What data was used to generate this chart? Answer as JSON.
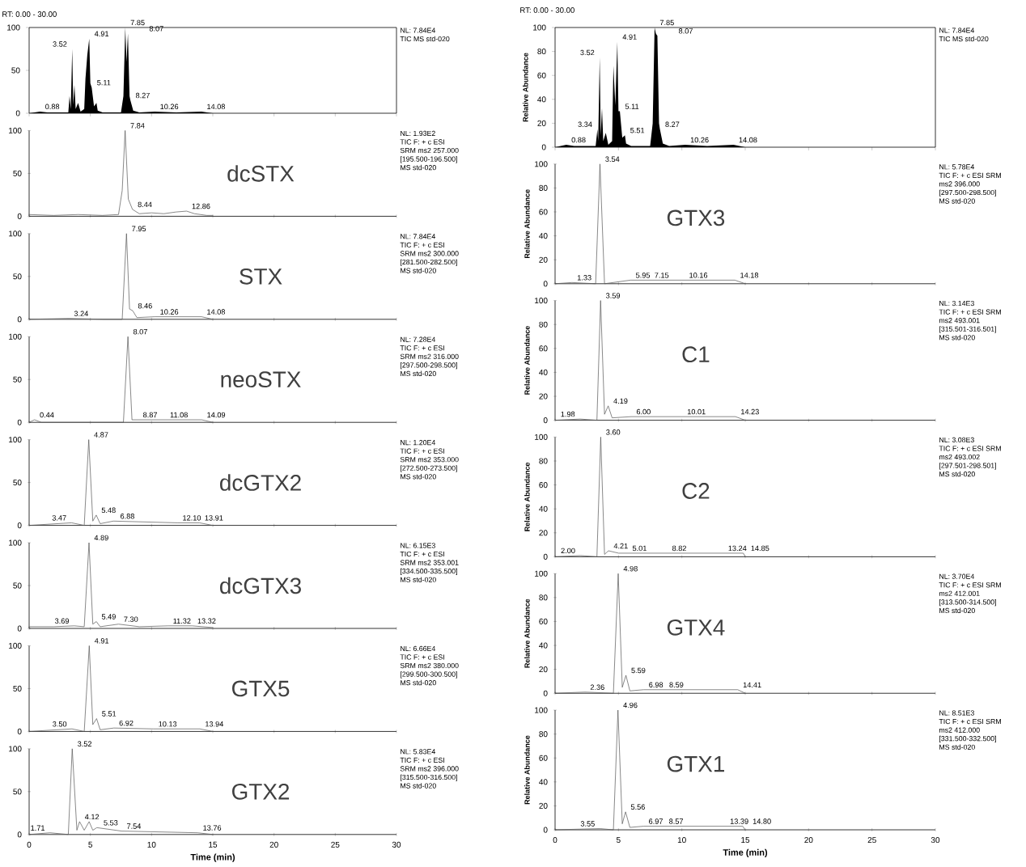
{
  "chart_data": [
    {
      "type": "area",
      "subtitle": "RT: 0.00 - 30.00",
      "color": "#000000",
      "xlim": [
        0,
        30
      ],
      "ylim": [
        0,
        100
      ],
      "xticks": [
        0,
        5,
        10,
        15,
        20,
        25,
        30
      ],
      "yticks": [
        0,
        50,
        100
      ],
      "tick_labels": "y",
      "x": [
        0,
        0.88,
        1.5,
        3.2,
        3.3,
        3.4,
        3.52,
        3.6,
        3.7,
        3.8,
        4.0,
        4.2,
        4.5,
        4.6,
        4.75,
        4.91,
        5.0,
        5.11,
        5.3,
        5.5,
        5.6,
        6.0,
        7.5,
        7.7,
        7.85,
        7.95,
        8.07,
        8.2,
        8.27,
        8.5,
        9.0,
        10.26,
        12.0,
        14.08,
        15.0
      ],
      "values": [
        0,
        2,
        1,
        1,
        20,
        5,
        75,
        10,
        33,
        5,
        12,
        2,
        5,
        40,
        68,
        87,
        35,
        30,
        8,
        12,
        3,
        1,
        1,
        20,
        100,
        60,
        93,
        20,
        15,
        3,
        1,
        2,
        1,
        2,
        0
      ],
      "annotations": [
        {
          "text": "0.88",
          "x": 0.88,
          "y": 2
        },
        {
          "text": "3.52",
          "x": 3.52,
          "y": 75
        },
        {
          "text": "4.91",
          "x": 4.91,
          "y": 87
        },
        {
          "text": "5.11",
          "x": 5.11,
          "y": 30
        },
        {
          "text": "7.85",
          "x": 7.85,
          "y": 100
        },
        {
          "text": "8.07",
          "x": 8.07,
          "y": 93
        },
        {
          "text": "8.27",
          "x": 8.27,
          "y": 15
        },
        {
          "text": "10.26",
          "x": 10.26,
          "y": 2
        },
        {
          "text": "14.08",
          "x": 14.08,
          "y": 2
        },
        "NL: 7.84E4",
        "TIC  MS std-020"
      ]
    },
    {
      "type": "line",
      "title": "dcSTX",
      "color": "#555555",
      "xlim": [
        0,
        30
      ],
      "ylim": [
        0,
        100
      ],
      "xticks": [
        0,
        5,
        10,
        15,
        20,
        25,
        30
      ],
      "yticks": [
        0,
        50,
        100
      ],
      "tick_labels": "y",
      "x": [
        0,
        2,
        4,
        6,
        7.3,
        7.6,
        7.84,
        8.1,
        8.44,
        9,
        10,
        11,
        12,
        12.86,
        13.5,
        14.5,
        15
      ],
      "values": [
        2,
        1,
        2,
        1,
        2,
        30,
        100,
        20,
        8,
        3,
        4,
        3,
        5,
        6,
        3,
        1,
        1
      ],
      "annotations": [
        {
          "text": "7.84",
          "x": 7.84,
          "y": 100
        },
        {
          "text": "8.44",
          "x": 8.44,
          "y": 8
        },
        {
          "text": "12.86",
          "x": 12.86,
          "y": 6
        },
        "NL: 1.93E2",
        "TIC F: + c ESI",
        "SRM ms2 257.000",
        "[195.500-196.500]",
        "MS std-020"
      ]
    },
    {
      "type": "line",
      "title": "STX",
      "color": "#555555",
      "xlim": [
        0,
        30
      ],
      "ylim": [
        0,
        100
      ],
      "xticks": [
        0,
        5,
        10,
        15,
        20,
        25,
        30
      ],
      "yticks": [
        0,
        50,
        100
      ],
      "tick_labels": "y",
      "x": [
        0,
        3.24,
        6,
        7.6,
        7.95,
        8.2,
        8.46,
        8.8,
        10.26,
        14.08,
        15
      ],
      "values": [
        0,
        1,
        0,
        0,
        100,
        12,
        10,
        2,
        3,
        3,
        0
      ],
      "annotations": [
        {
          "text": "3.24",
          "x": 3.24,
          "y": 1
        },
        {
          "text": "7.95",
          "x": 7.95,
          "y": 100
        },
        {
          "text": "8.46",
          "x": 8.46,
          "y": 10
        },
        {
          "text": "10.26",
          "x": 10.26,
          "y": 3
        },
        {
          "text": "14.08",
          "x": 14.08,
          "y": 3
        },
        "NL: 7.84E4",
        "TIC F: + c ESI",
        "SRM ms2 300.000",
        "[281.500-282.500]",
        "MS std-020"
      ]
    },
    {
      "type": "line",
      "title": "neoSTX",
      "color": "#555555",
      "xlim": [
        0,
        30
      ],
      "ylim": [
        0,
        100
      ],
      "xticks": [
        0,
        5,
        10,
        15,
        20,
        25,
        30
      ],
      "yticks": [
        0,
        50,
        100
      ],
      "tick_labels": "y",
      "x": [
        0,
        0.44,
        1,
        7.7,
        8.07,
        8.4,
        8.87,
        11.08,
        14.09,
        15
      ],
      "values": [
        0,
        3,
        0,
        0,
        100,
        3,
        3,
        3,
        3,
        0
      ],
      "annotations": [
        {
          "text": "0.44",
          "x": 0.44,
          "y": 3
        },
        {
          "text": "8.07",
          "x": 8.07,
          "y": 100
        },
        {
          "text": "8.87",
          "x": 8.87,
          "y": 3
        },
        {
          "text": "11.08",
          "x": 11.08,
          "y": 3
        },
        {
          "text": "14.09",
          "x": 14.09,
          "y": 3
        },
        "NL: 7.28E4",
        "TIC F: + c ESI",
        "SRM ms2 316.000",
        "[297.500-298.500]",
        "MS std-020"
      ]
    },
    {
      "type": "line",
      "title": "dcGTX2",
      "color": "#555555",
      "xlim": [
        0,
        30
      ],
      "ylim": [
        0,
        100
      ],
      "xticks": [
        0,
        5,
        10,
        15,
        20,
        25,
        30
      ],
      "yticks": [
        0,
        50,
        100
      ],
      "tick_labels": "y",
      "x": [
        0,
        3.47,
        4.5,
        4.87,
        5.2,
        5.48,
        5.8,
        6.88,
        12.1,
        13.91,
        15
      ],
      "values": [
        0,
        3,
        0,
        100,
        5,
        12,
        2,
        5,
        3,
        3,
        0
      ],
      "annotations": [
        {
          "text": "3.47",
          "x": 3.47,
          "y": 3
        },
        {
          "text": "4.87",
          "x": 4.87,
          "y": 100
        },
        {
          "text": "5.48",
          "x": 5.48,
          "y": 12
        },
        {
          "text": "6.88",
          "x": 6.88,
          "y": 5
        },
        {
          "text": "12.10",
          "x": 12.1,
          "y": 3
        },
        {
          "text": "13.91",
          "x": 13.91,
          "y": 3
        },
        "NL: 1.20E4",
        "TIC F: + c ESI",
        "SRM ms2 353.000",
        "[272.500-273.500]",
        "MS std-020"
      ]
    },
    {
      "type": "line",
      "title": "dcGTX3",
      "color": "#555555",
      "xlim": [
        0,
        30
      ],
      "ylim": [
        0,
        100
      ],
      "xticks": [
        0,
        5,
        10,
        15,
        20,
        25,
        30
      ],
      "yticks": [
        0,
        50,
        100
      ],
      "tick_labels": "y",
      "x": [
        0,
        2,
        3.69,
        4.5,
        4.89,
        5.2,
        5.49,
        5.8,
        7.3,
        9,
        11.32,
        13.32,
        15
      ],
      "values": [
        2,
        2,
        3,
        2,
        100,
        5,
        8,
        2,
        5,
        2,
        3,
        3,
        1
      ],
      "annotations": [
        {
          "text": "3.69",
          "x": 3.69,
          "y": 3
        },
        {
          "text": "4.89",
          "x": 4.89,
          "y": 100
        },
        {
          "text": "5.49",
          "x": 5.49,
          "y": 8
        },
        {
          "text": "7.30",
          "x": 7.3,
          "y": 5
        },
        {
          "text": "11.32",
          "x": 11.32,
          "y": 3
        },
        {
          "text": "13.32",
          "x": 13.32,
          "y": 3
        },
        "NL: 6.15E3",
        "TIC F: + c ESI",
        "SRM ms2 353.001",
        "[334.500-335.500]",
        "MS std-020"
      ]
    },
    {
      "type": "line",
      "title": "GTX5",
      "color": "#555555",
      "xlim": [
        0,
        30
      ],
      "ylim": [
        0,
        100
      ],
      "xticks": [
        0,
        5,
        10,
        15,
        20,
        25,
        30
      ],
      "yticks": [
        0,
        50,
        100
      ],
      "tick_labels": "y",
      "x": [
        0,
        3.5,
        4.5,
        4.91,
        5.2,
        5.51,
        5.8,
        6.92,
        10.13,
        13.94,
        15
      ],
      "values": [
        0,
        3,
        0,
        100,
        8,
        15,
        2,
        4,
        3,
        3,
        0
      ],
      "annotations": [
        {
          "text": "3.50",
          "x": 3.5,
          "y": 3
        },
        {
          "text": "4.91",
          "x": 4.91,
          "y": 100
        },
        {
          "text": "5.51",
          "x": 5.51,
          "y": 15
        },
        {
          "text": "6.92",
          "x": 6.92,
          "y": 4
        },
        {
          "text": "10.13",
          "x": 10.13,
          "y": 3
        },
        {
          "text": "13.94",
          "x": 13.94,
          "y": 3
        },
        "NL: 6.66E4",
        "TIC F: + c ESI",
        "SRM ms2 380.000",
        "[299.500-300.500]",
        "MS std-020"
      ]
    },
    {
      "type": "line",
      "title": "GTX2",
      "xlabel": "Time (min)",
      "color": "#555555",
      "xlim": [
        0,
        30
      ],
      "ylim": [
        0,
        100
      ],
      "xticks": [
        0,
        5,
        10,
        15,
        20,
        25,
        30
      ],
      "yticks": [
        0,
        50,
        100
      ],
      "x": [
        0,
        1.71,
        3.2,
        3.52,
        3.9,
        4.12,
        4.5,
        4.9,
        5.2,
        5.53,
        7.54,
        13.76,
        15
      ],
      "values": [
        0,
        2,
        0,
        100,
        5,
        15,
        5,
        15,
        5,
        8,
        4,
        2,
        0
      ],
      "annotations": [
        {
          "text": "1.71",
          "x": 1.71,
          "y": 2
        },
        {
          "text": "3.52",
          "x": 3.52,
          "y": 100
        },
        {
          "text": "4.12",
          "x": 4.12,
          "y": 15
        },
        {
          "text": "5.53",
          "x": 5.53,
          "y": 8
        },
        {
          "text": "7.54",
          "x": 7.54,
          "y": 4
        },
        {
          "text": "13.76",
          "x": 13.76,
          "y": 2
        },
        "NL: 5.83E4",
        "TIC F: + c ESI",
        "SRM ms2 396.000",
        "[315.500-316.500]",
        "MS std-020"
      ]
    },
    {
      "type": "area",
      "subtitle": "RT: 0.00 - 30.00",
      "ylabel": "Relative Abundance",
      "color": "#000000",
      "xlim": [
        0,
        30
      ],
      "ylim": [
        0,
        100
      ],
      "xticks": [
        0,
        5,
        10,
        15,
        20,
        25,
        30
      ],
      "yticks": [
        0,
        20,
        40,
        60,
        80,
        100
      ],
      "tick_labels": "y",
      "x": [
        0,
        0.88,
        1.5,
        3.2,
        3.34,
        3.4,
        3.52,
        3.6,
        3.7,
        3.8,
        4.0,
        4.2,
        4.5,
        4.6,
        4.75,
        4.91,
        5.0,
        5.11,
        5.3,
        5.51,
        5.6,
        6.0,
        7.5,
        7.7,
        7.85,
        7.95,
        8.07,
        8.2,
        8.27,
        8.5,
        9.0,
        10.26,
        12.0,
        14.08,
        15.0
      ],
      "values": [
        0,
        2,
        1,
        1,
        15,
        5,
        75,
        10,
        33,
        5,
        12,
        2,
        5,
        68,
        35,
        88,
        30,
        30,
        8,
        10,
        3,
        1,
        1,
        20,
        100,
        95,
        93,
        20,
        15,
        3,
        1,
        2,
        1,
        2,
        0
      ],
      "annotations": [
        {
          "text": "0.88",
          "x": 0.88,
          "y": 2
        },
        {
          "text": "3.34",
          "x": 3.34,
          "y": 15
        },
        {
          "text": "3.52",
          "x": 3.52,
          "y": 75
        },
        {
          "text": "4.91",
          "x": 4.91,
          "y": 88
        },
        {
          "text": "5.11",
          "x": 5.11,
          "y": 30
        },
        {
          "text": "5.51",
          "x": 5.51,
          "y": 10
        },
        {
          "text": "7.85",
          "x": 7.85,
          "y": 100
        },
        {
          "text": "8.07",
          "x": 8.07,
          "y": 93
        },
        {
          "text": "8.27",
          "x": 8.27,
          "y": 15
        },
        {
          "text": "10.26",
          "x": 10.26,
          "y": 2
        },
        {
          "text": "14.08",
          "x": 14.08,
          "y": 2
        },
        "NL: 7.84E4",
        "TIC MS std-020"
      ]
    },
    {
      "type": "line",
      "title": "GTX3",
      "ylabel": "Relative Abundance",
      "color": "#555555",
      "xlim": [
        0,
        30
      ],
      "ylim": [
        0,
        100
      ],
      "xticks": [
        0,
        5,
        10,
        15,
        20,
        25,
        30
      ],
      "yticks": [
        0,
        20,
        40,
        60,
        80,
        100
      ],
      "tick_labels": "y",
      "x": [
        0,
        1.33,
        3.2,
        3.54,
        3.9,
        5.95,
        7.15,
        10.16,
        14.18,
        15
      ],
      "values": [
        0,
        1,
        0,
        100,
        0,
        3,
        3,
        3,
        3,
        0
      ],
      "annotations": [
        {
          "text": "1.33",
          "x": 1.33,
          "y": 1
        },
        {
          "text": "3.54",
          "x": 3.54,
          "y": 100
        },
        {
          "text": "5.95",
          "x": 5.95,
          "y": 3
        },
        {
          "text": "7.15",
          "x": 7.15,
          "y": 3
        },
        {
          "text": "10.16",
          "x": 10.16,
          "y": 3
        },
        {
          "text": "14.18",
          "x": 14.18,
          "y": 3
        },
        "NL: 5.78E4",
        "TIC F: + c ESI SRM",
        "ms2 396.000",
        "[297.500-298.500]",
        "MS std-020"
      ]
    },
    {
      "type": "line",
      "title": "C1",
      "ylabel": "Relative Abundance",
      "color": "#555555",
      "xlim": [
        0,
        30
      ],
      "ylim": [
        0,
        100
      ],
      "xticks": [
        0,
        5,
        10,
        15,
        20,
        25,
        30
      ],
      "yticks": [
        0,
        20,
        40,
        60,
        80,
        100
      ],
      "tick_labels": "y",
      "x": [
        0,
        1.98,
        3.3,
        3.59,
        3.9,
        4.19,
        4.5,
        6.0,
        10.01,
        14.23,
        15
      ],
      "values": [
        0,
        1,
        0,
        100,
        5,
        12,
        2,
        3,
        3,
        3,
        0
      ],
      "annotations": [
        {
          "text": "1.98",
          "x": 1.98,
          "y": 1
        },
        {
          "text": "3.59",
          "x": 3.59,
          "y": 100
        },
        {
          "text": "4.19",
          "x": 4.19,
          "y": 12
        },
        {
          "text": "6.00",
          "x": 6.0,
          "y": 3
        },
        {
          "text": "10.01",
          "x": 10.01,
          "y": 3
        },
        {
          "text": "14.23",
          "x": 14.23,
          "y": 3
        },
        "NL: 3.14E3",
        "TIC F: + c ESI SRM",
        "ms2 493.001",
        "[315.501-316.501]",
        "MS std-020"
      ]
    },
    {
      "type": "line",
      "title": "C2",
      "ylabel": "Relative Abundance",
      "color": "#555555",
      "xlim": [
        0,
        30
      ],
      "ylim": [
        0,
        100
      ],
      "xticks": [
        0,
        5,
        10,
        15,
        20,
        25,
        30
      ],
      "yticks": [
        0,
        20,
        40,
        60,
        80,
        100
      ],
      "tick_labels": "y",
      "x": [
        0,
        2.0,
        3.3,
        3.6,
        3.9,
        4.21,
        5.01,
        8.82,
        13.24,
        14.85,
        15
      ],
      "values": [
        0,
        1,
        0,
        100,
        2,
        5,
        3,
        3,
        3,
        3,
        0
      ],
      "annotations": [
        {
          "text": "2.00",
          "x": 2.0,
          "y": 1
        },
        {
          "text": "3.60",
          "x": 3.6,
          "y": 100
        },
        {
          "text": "4.21",
          "x": 4.21,
          "y": 5
        },
        {
          "text": "5.01",
          "x": 5.01,
          "y": 3
        },
        {
          "text": "8.82",
          "x": 8.82,
          "y": 3
        },
        {
          "text": "13.24",
          "x": 13.24,
          "y": 3
        },
        {
          "text": "14.85",
          "x": 14.85,
          "y": 3
        },
        "NL: 3.08E3",
        "TIC F: + c ESI SRM",
        "ms2 493.002",
        "[297.501-298.501]",
        "MS std-020"
      ]
    },
    {
      "type": "line",
      "title": "GTX4",
      "ylabel": "Relative Abundance",
      "color": "#555555",
      "xlim": [
        0,
        30
      ],
      "ylim": [
        0,
        100
      ],
      "xticks": [
        0,
        5,
        10,
        15,
        20,
        25,
        30
      ],
      "yticks": [
        0,
        20,
        40,
        60,
        80,
        100
      ],
      "tick_labels": "y",
      "x": [
        0,
        2.36,
        4.6,
        4.98,
        5.3,
        5.59,
        5.9,
        6.98,
        8.59,
        14.41,
        15
      ],
      "values": [
        0,
        1,
        0,
        100,
        5,
        15,
        2,
        3,
        3,
        3,
        0
      ],
      "annotations": [
        {
          "text": "2.36",
          "x": 2.36,
          "y": 1
        },
        {
          "text": "4.98",
          "x": 4.98,
          "y": 100
        },
        {
          "text": "5.59",
          "x": 5.59,
          "y": 15
        },
        {
          "text": "6.98",
          "x": 6.98,
          "y": 3
        },
        {
          "text": "8.59",
          "x": 8.59,
          "y": 3
        },
        {
          "text": "14.41",
          "x": 14.41,
          "y": 3
        },
        "NL: 3.70E4",
        "TIC F: + c ESI SRM",
        "ms2 412.001",
        "[313.500-314.500]",
        "MS std-020"
      ]
    },
    {
      "type": "line",
      "title": "GTX1",
      "ylabel": "Relative Abundance",
      "xlabel": "Time (min)",
      "color": "#555555",
      "xlim": [
        0,
        30
      ],
      "ylim": [
        0,
        100
      ],
      "xticks": [
        0,
        5,
        10,
        15,
        20,
        25,
        30
      ],
      "yticks": [
        0,
        20,
        40,
        60,
        80,
        100
      ],
      "x": [
        0,
        3.55,
        4.6,
        4.96,
        5.3,
        5.56,
        5.9,
        6.97,
        8.57,
        13.39,
        14.8,
        15
      ],
      "values": [
        0,
        1,
        0,
        100,
        5,
        15,
        2,
        3,
        3,
        3,
        3,
        0
      ],
      "annotations": [
        {
          "text": "3.55",
          "x": 3.55,
          "y": 1
        },
        {
          "text": "4.96",
          "x": 4.96,
          "y": 100
        },
        {
          "text": "5.56",
          "x": 5.56,
          "y": 15
        },
        {
          "text": "6.97",
          "x": 6.97,
          "y": 3
        },
        {
          "text": "8.57",
          "x": 8.57,
          "y": 3
        },
        {
          "text": "13.39",
          "x": 13.39,
          "y": 3
        },
        {
          "text": "14.80",
          "x": 14.8,
          "y": 3
        },
        "NL: 8.51E3",
        "TIC F: + c ESI SRM",
        "ms2 412.000",
        "[331.500-332.500]",
        "MS std-020"
      ]
    }
  ]
}
